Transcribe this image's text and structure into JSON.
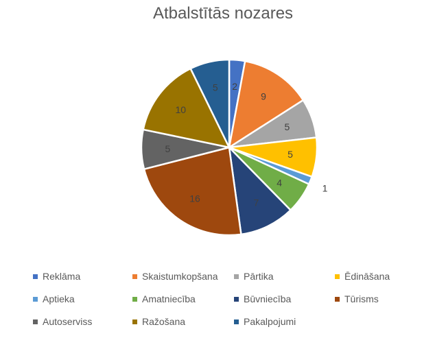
{
  "chart_data": {
    "type": "pie",
    "title": "Atbalstītās nozares",
    "categories": [
      "Reklāma",
      "Skaistumkopšana",
      "Pārtika",
      "Ēdināšana",
      "Aptieka",
      "Amatniecība",
      "Būvniecība",
      "Tūrisms",
      "Autoserviss",
      "Ražošana",
      "Pakalpojumi"
    ],
    "values": [
      2,
      9,
      5,
      5,
      1,
      4,
      7,
      16,
      5,
      10,
      5
    ],
    "data_labels": [
      "2",
      "9",
      "5",
      "5",
      "1",
      "4",
      "7",
      "16",
      "5",
      "10",
      "5"
    ],
    "colors": [
      "#4472C4",
      "#ED7D31",
      "#A5A5A5",
      "#FFC000",
      "#5B9BD5",
      "#70AD47",
      "#264478",
      "#9E480E",
      "#636363",
      "#997300",
      "#255E91"
    ],
    "legend_position": "bottom",
    "start_angle": "top",
    "direction": "clockwise"
  }
}
